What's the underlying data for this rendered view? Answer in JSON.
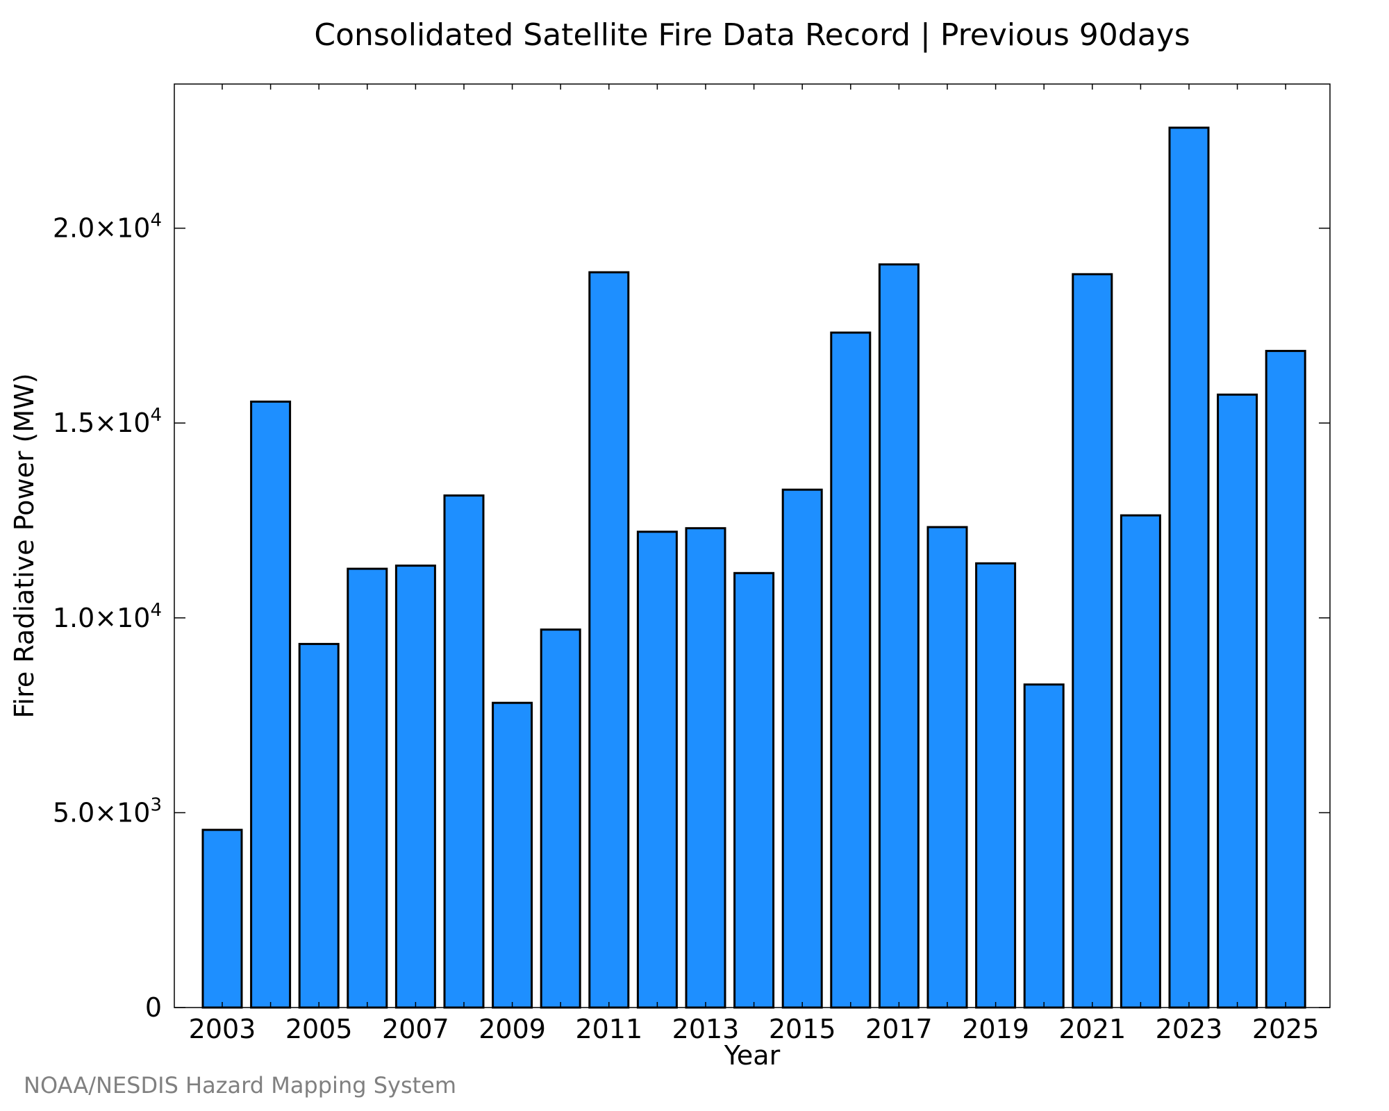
{
  "chart_data": {
    "type": "bar",
    "title": "Consolidated Satellite Fire Data Record | Previous 90days",
    "xlabel": "Year",
    "ylabel": "Fire Radiative Power (MW)",
    "categories": [
      "2003",
      "2004",
      "2005",
      "2006",
      "2007",
      "2008",
      "2009",
      "2010",
      "2011",
      "2012",
      "2013",
      "2014",
      "2015",
      "2016",
      "2017",
      "2018",
      "2019",
      "2020",
      "2021",
      "2022",
      "2023",
      "2024",
      "2025"
    ],
    "values": [
      4560,
      15550,
      9330,
      11260,
      11340,
      13140,
      7820,
      9700,
      18870,
      12210,
      12300,
      11150,
      13290,
      17320,
      19070,
      12330,
      11400,
      8290,
      18820,
      12630,
      22580,
      15730,
      16850
    ],
    "xticks": [
      "2003",
      "2005",
      "2007",
      "2009",
      "2011",
      "2013",
      "2015",
      "2017",
      "2019",
      "2021",
      "2023",
      "2025"
    ],
    "yticks": [
      {
        "value": 0,
        "mantissa": "0",
        "exponent": ""
      },
      {
        "value": 5000,
        "mantissa": "5.0×10",
        "exponent": "3"
      },
      {
        "value": 10000,
        "mantissa": "1.0×10",
        "exponent": "4"
      },
      {
        "value": 15000,
        "mantissa": "1.5×10",
        "exponent": "4"
      },
      {
        "value": 20000,
        "mantissa": "2.0×10",
        "exponent": "4"
      }
    ],
    "ylim": [
      0,
      23700
    ],
    "bar_color": "#1e8fff",
    "grid": false,
    "legend": "none"
  },
  "footer": "NOAA/NESDIS Hazard Mapping System"
}
